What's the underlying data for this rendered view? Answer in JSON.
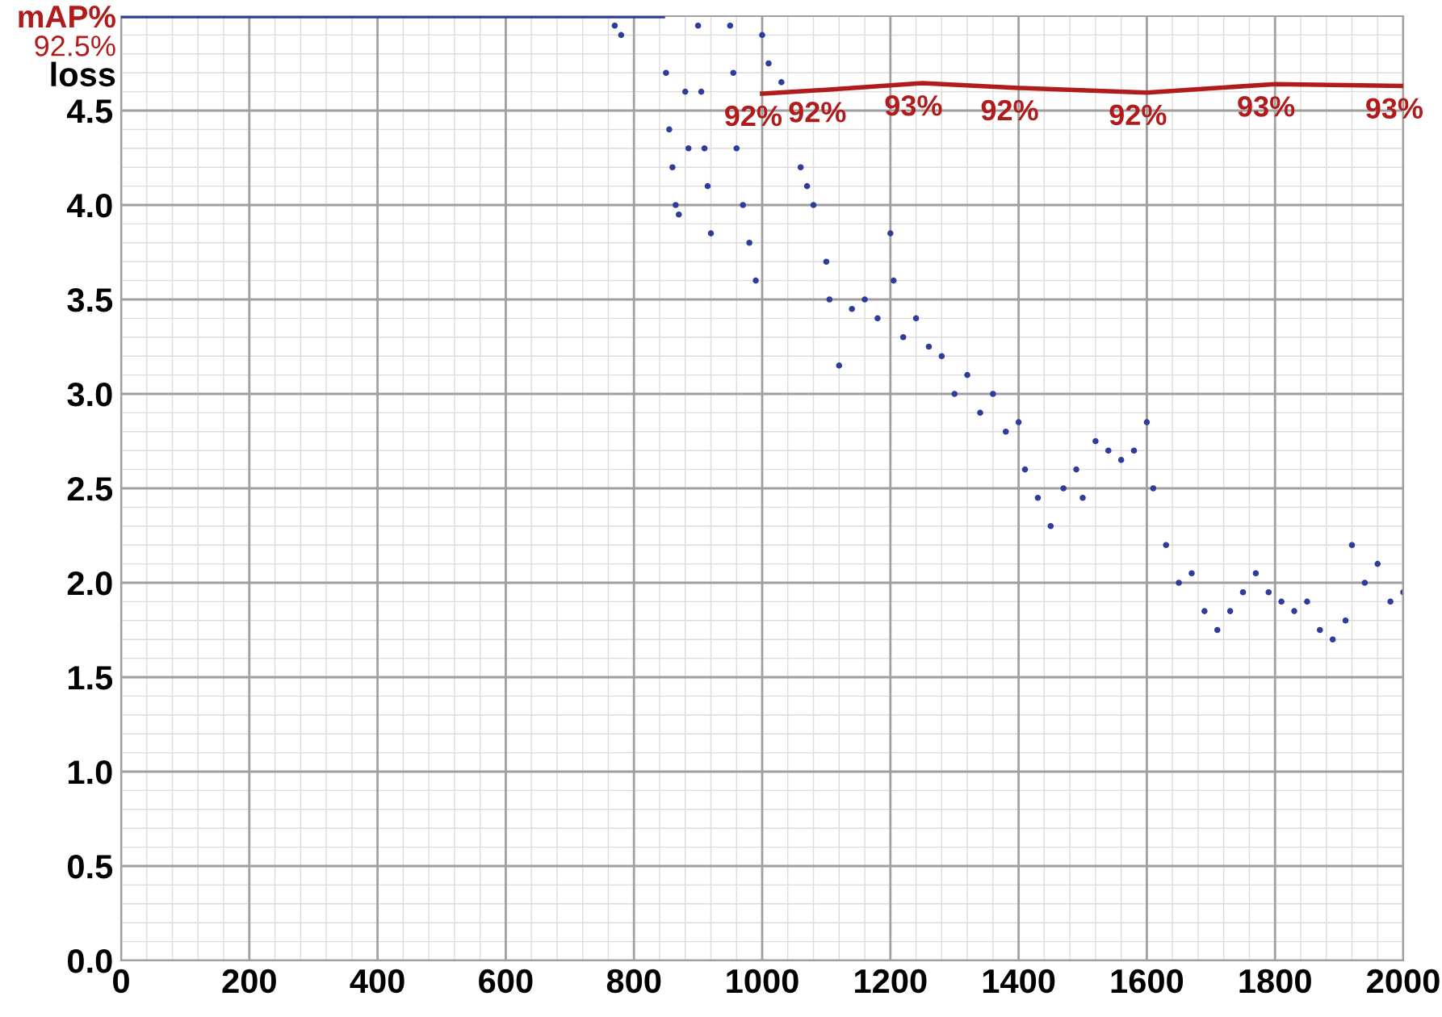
{
  "chart_data": {
    "type": "scatter",
    "ylabel": "loss",
    "y2label": "mAP%",
    "annotations": [
      "92.5%"
    ],
    "xlim": [
      0,
      2000
    ],
    "xticks": [
      0,
      200,
      400,
      600,
      800,
      1000,
      1200,
      1400,
      1600,
      1800,
      2000
    ],
    "ylim": [
      0,
      5.0
    ],
    "yticks": [
      {
        "value": 0,
        "label": "0.0"
      },
      0.5,
      {
        "value": 1,
        "label": "1.0"
      },
      1.5,
      {
        "value": 2,
        "label": "2.0"
      },
      2.5,
      {
        "value": 3,
        "label": "3.0"
      },
      3.5,
      {
        "value": 4,
        "label": "4.0"
      },
      4.5
    ],
    "y2lim": [
      0,
      100
    ],
    "grid": true,
    "legend": false,
    "series": [
      {
        "type": "line",
        "color": "#2e3d9a",
        "x": [
          0,
          845
        ],
        "values": [
          5.0,
          5.0
        ]
      },
      {
        "color": "#2e3d9a",
        "marker": "circle",
        "x": [
          770,
          780,
          850,
          855,
          860,
          865,
          870,
          880,
          885,
          900,
          905,
          910,
          915,
          920,
          950,
          955,
          960,
          970,
          980,
          990,
          1000,
          1010,
          1030,
          1060,
          1070,
          1080,
          1100,
          1105,
          1120,
          1140,
          1160,
          1180,
          1200,
          1205,
          1220,
          1240,
          1260,
          1280,
          1300,
          1320,
          1340,
          1360,
          1380,
          1400,
          1410,
          1430,
          1450,
          1470,
          1490,
          1500,
          1520,
          1540,
          1560,
          1580,
          1600,
          1610,
          1630,
          1650,
          1670,
          1690,
          1710,
          1730,
          1750,
          1770,
          1790,
          1810,
          1830,
          1850,
          1870,
          1890,
          1910,
          1920,
          1940,
          1960,
          1980,
          2000
        ],
        "values": [
          4.95,
          4.9,
          4.7,
          4.4,
          4.2,
          4.0,
          3.95,
          4.6,
          4.3,
          4.95,
          4.6,
          4.3,
          4.1,
          3.85,
          4.95,
          4.7,
          4.3,
          4.0,
          3.8,
          3.6,
          4.9,
          4.75,
          4.65,
          4.2,
          4.1,
          4.0,
          3.7,
          3.5,
          3.15,
          3.45,
          3.5,
          3.4,
          3.85,
          3.6,
          3.3,
          3.4,
          3.25,
          3.2,
          3.0,
          3.1,
          2.9,
          3.0,
          2.8,
          2.85,
          2.6,
          2.45,
          2.3,
          2.5,
          2.6,
          2.45,
          2.75,
          2.7,
          2.65,
          2.7,
          2.85,
          2.5,
          2.2,
          2.0,
          2.05,
          1.85,
          1.75,
          1.85,
          1.95,
          2.05,
          1.95,
          1.9,
          1.85,
          1.9,
          1.75,
          1.7,
          1.8,
          2.2,
          2.0,
          2.1,
          1.9,
          1.95
        ]
      },
      {
        "type": "line",
        "axis": "y2",
        "color": "#b01c1c",
        "x": [
          1000,
          1100,
          1250,
          1400,
          1600,
          1800,
          2000
        ],
        "values": [
          91.8,
          92.2,
          92.9,
          92.4,
          91.9,
          92.8,
          92.6
        ],
        "value_labels": [
          "92%",
          "92%",
          "93%",
          "92%",
          "92%",
          "93%",
          "93%"
        ]
      }
    ]
  }
}
